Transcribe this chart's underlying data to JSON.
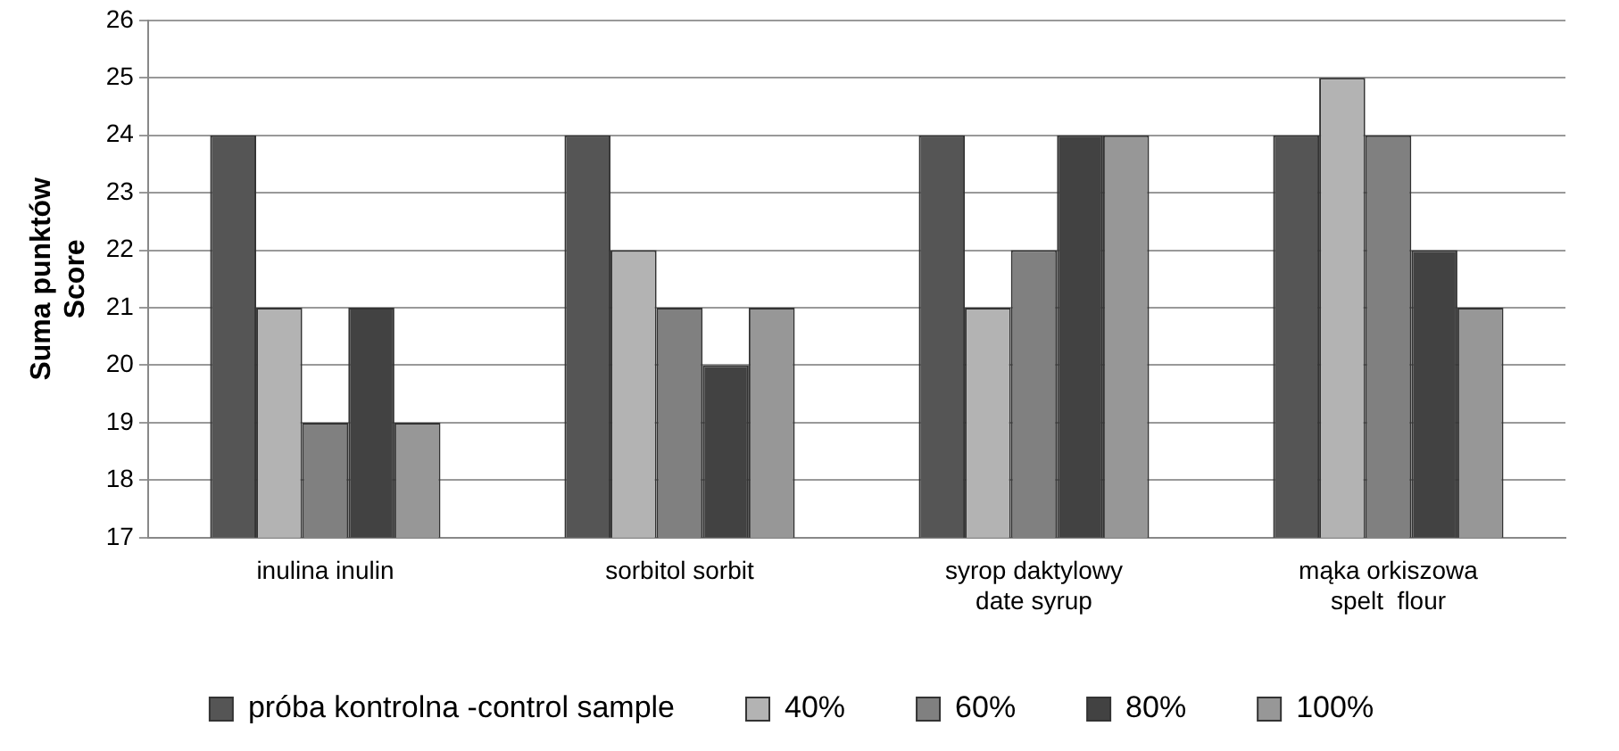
{
  "chart_data": {
    "type": "bar",
    "ylabel": "Suma punktów\nScore",
    "categories": [
      "inulina inulin",
      "sorbitol sorbit",
      "syrop daktylowy\ndate syrup",
      "mąka orkiszowa\nspelt  flour"
    ],
    "series": [
      {
        "name": "próba kontrolna -control sample",
        "color": "#555555",
        "values": [
          24,
          24,
          24,
          24
        ]
      },
      {
        "name": "40%",
        "color": "#b3b3b3",
        "values": [
          21,
          22,
          21,
          25
        ]
      },
      {
        "name": "60%",
        "color": "#808080",
        "values": [
          19,
          21,
          22,
          24
        ]
      },
      {
        "name": "80%",
        "color": "#424242",
        "values": [
          21,
          20,
          24,
          22
        ]
      },
      {
        "name": "100%",
        "color": "#979797",
        "values": [
          19,
          21,
          24,
          21
        ]
      }
    ],
    "ylim": [
      17,
      26
    ],
    "yticks": [
      17,
      18,
      19,
      20,
      21,
      22,
      23,
      24,
      25,
      26
    ],
    "grid": "y",
    "legend": "bottom"
  }
}
